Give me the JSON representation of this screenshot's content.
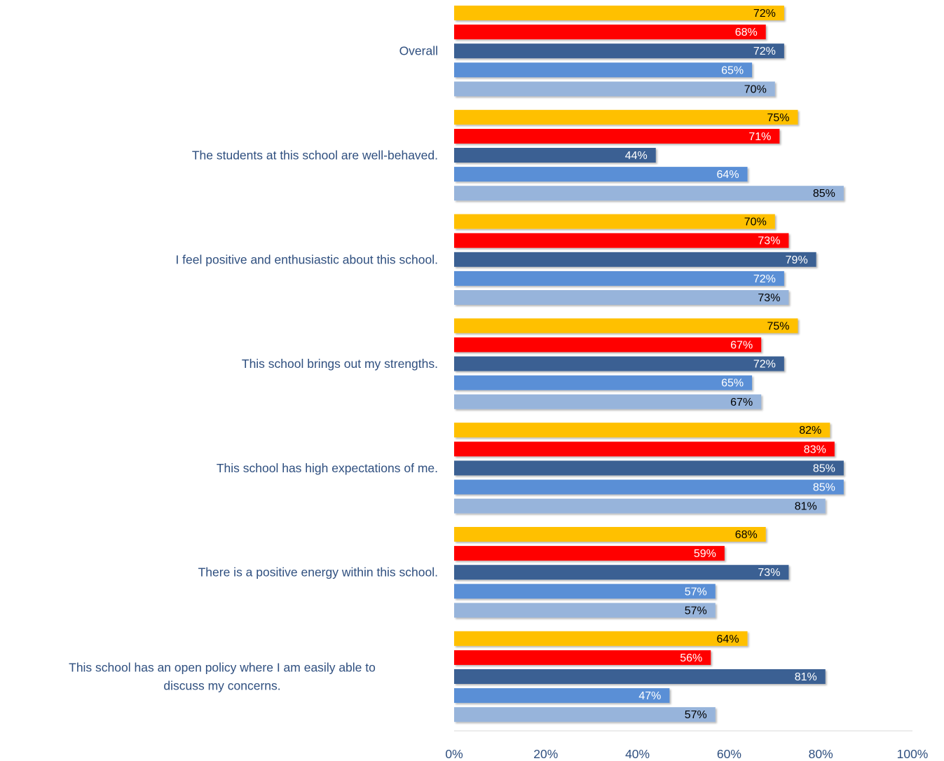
{
  "chart_data": {
    "type": "bar",
    "orientation": "horizontal",
    "categories": [
      "Overall",
      "The students at this school are well-behaved.",
      "I feel positive and enthusiastic about this school.",
      "This school brings out my strengths.",
      "This school has high expectations of me.",
      "There is a positive energy within this school.",
      "This school has an open policy where I am easily able to discuss my concerns."
    ],
    "series": [
      {
        "color": "#ffc000",
        "label_color": "#000000",
        "values": [
          72,
          75,
          70,
          75,
          82,
          68,
          64
        ]
      },
      {
        "color": "#ff0000",
        "label_color": "#ffffff",
        "values": [
          68,
          71,
          73,
          67,
          83,
          59,
          56
        ]
      },
      {
        "color": "#3a6193",
        "label_color": "#ffffff",
        "values": [
          72,
          44,
          79,
          72,
          85,
          73,
          81
        ]
      },
      {
        "color": "#5a8fd6",
        "label_color": "#ffffff",
        "values": [
          65,
          64,
          72,
          65,
          85,
          57,
          47
        ]
      },
      {
        "color": "#97b4db",
        "label_color": "#000000",
        "values": [
          70,
          85,
          73,
          67,
          81,
          57,
          57
        ]
      }
    ],
    "xlim": [
      0,
      100
    ],
    "xticks": [
      "0%",
      "20%",
      "40%",
      "60%",
      "80%",
      "100%"
    ],
    "value_suffix": "%",
    "title": "",
    "xlabel": "",
    "ylabel": "",
    "grid": false,
    "legend": "none"
  }
}
